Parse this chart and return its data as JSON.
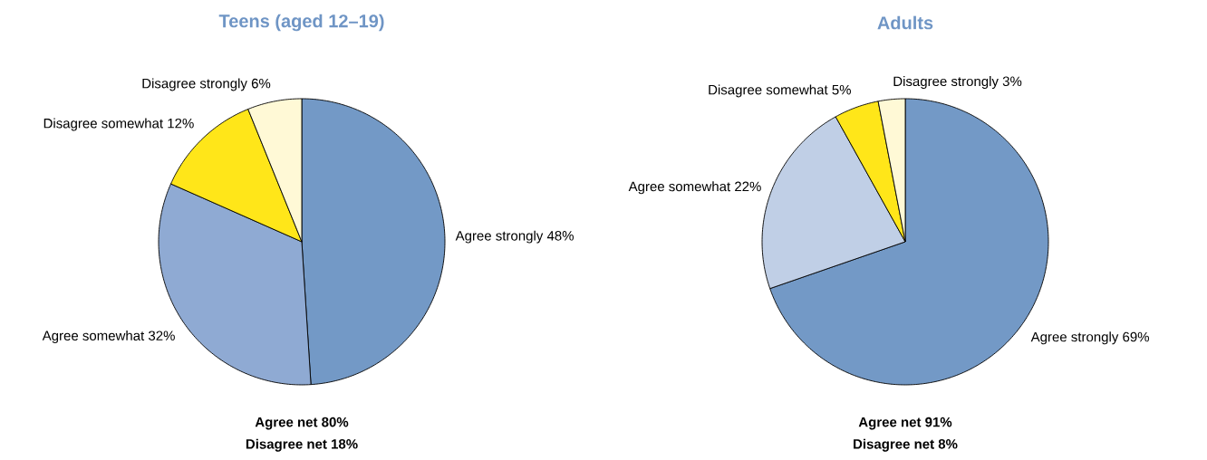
{
  "chart_data": [
    {
      "type": "pie",
      "title": "Teens (aged 12–19)",
      "categories": [
        "Agree strongly",
        "Agree somewhat",
        "Disagree somewhat",
        "Disagree strongly"
      ],
      "values": [
        48,
        32,
        12,
        6
      ],
      "value_labels": [
        "48%",
        "32%",
        "12%",
        "6%"
      ],
      "colors": [
        "#7399c6",
        "#8faad3",
        "#ffe619",
        "#fff9d6"
      ],
      "annotations": [
        "**Agree net 80%**",
        "**Disagree net 18%**"
      ]
    },
    {
      "type": "pie",
      "title": "Adults",
      "categories": [
        "Agree strongly",
        "Agree somewhat",
        "Disagree somewhat",
        "Disagree strongly"
      ],
      "values": [
        69,
        22,
        5,
        3
      ],
      "value_labels": [
        "69%",
        "22%",
        "5%",
        "3%"
      ],
      "colors": [
        "#7399c6",
        "#c0cfe6",
        "#ffe619",
        "#fff9d6"
      ],
      "annotations": [
        "**Agree net 91%**",
        "**Disagree net 8%**"
      ]
    }
  ]
}
